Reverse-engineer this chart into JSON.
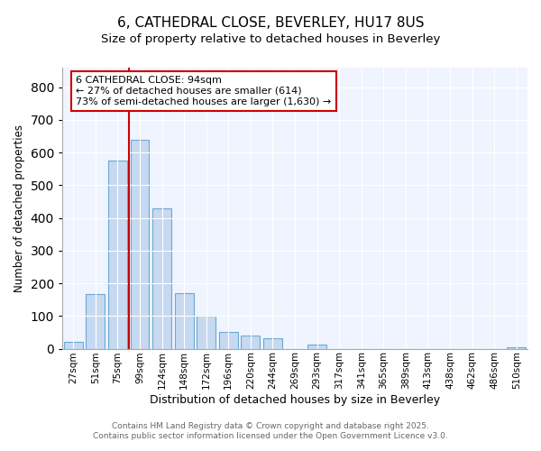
{
  "title1": "6, CATHEDRAL CLOSE, BEVERLEY, HU17 8US",
  "title2": "Size of property relative to detached houses in Beverley",
  "xlabel": "Distribution of detached houses by size in Beverley",
  "ylabel": "Number of detached properties",
  "categories": [
    "27sqm",
    "51sqm",
    "75sqm",
    "99sqm",
    "124sqm",
    "148sqm",
    "172sqm",
    "196sqm",
    "220sqm",
    "244sqm",
    "269sqm",
    "293sqm",
    "317sqm",
    "341sqm",
    "365sqm",
    "389sqm",
    "413sqm",
    "438sqm",
    "462sqm",
    "486sqm",
    "510sqm"
  ],
  "values": [
    20,
    168,
    575,
    640,
    430,
    170,
    102,
    52,
    40,
    33,
    0,
    12,
    0,
    0,
    0,
    0,
    0,
    0,
    0,
    0,
    5
  ],
  "bar_color": "#c6d9f0",
  "bar_edgecolor": "#6aaad4",
  "vline_x": 2.5,
  "vline_color": "#cc0000",
  "annotation_text": "6 CATHEDRAL CLOSE: 94sqm\n← 27% of detached houses are smaller (614)\n73% of semi-detached houses are larger (1,630) →",
  "annotation_box_edgecolor": "#cc0000",
  "annotation_box_facecolor": "#ffffff",
  "ylim": [
    0,
    860
  ],
  "yticks": [
    0,
    100,
    200,
    300,
    400,
    500,
    600,
    700,
    800
  ],
  "footer1": "Contains HM Land Registry data © Crown copyright and database right 2025.",
  "footer2": "Contains public sector information licensed under the Open Government Licence v3.0.",
  "background_color": "#ffffff",
  "plot_bg_color": "#f0f4ff",
  "grid_color": "#ffffff",
  "title_fontsize": 11,
  "subtitle_fontsize": 9.5
}
